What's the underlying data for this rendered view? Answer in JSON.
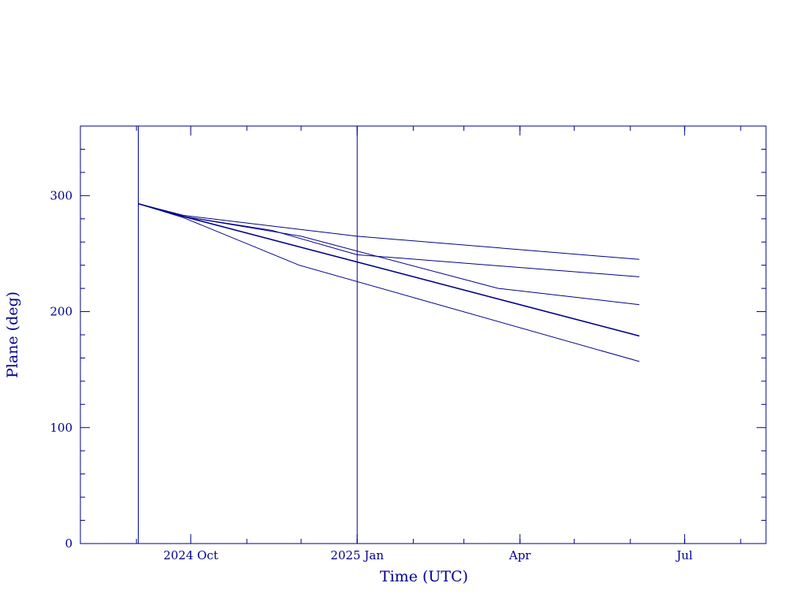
{
  "chart_data": {
    "type": "line",
    "title": "",
    "xlabel": "Time (UTC)",
    "ylabel": "Plane (deg)",
    "x_axis_type": "date",
    "xlim": [
      "2024-08-01",
      "2025-08-15"
    ],
    "ylim": [
      0,
      360
    ],
    "x_ticks": [
      {
        "date": "2024-10-01",
        "label": "2024 Oct"
      },
      {
        "date": "2025-01-01",
        "label": "2025 Jan"
      },
      {
        "date": "2025-04-01",
        "label": "Apr"
      },
      {
        "date": "2025-07-01",
        "label": "Jul"
      }
    ],
    "y_ticks": [
      {
        "value": 0,
        "label": "0"
      },
      {
        "value": 100,
        "label": "100"
      },
      {
        "value": 200,
        "label": "200"
      },
      {
        "value": 300,
        "label": "300"
      }
    ],
    "vertical_lines": [
      "2024-09-02",
      "2025-01-01"
    ],
    "grid": false,
    "color": "#00008b",
    "series": [
      {
        "x": [
          "2024-09-02",
          "2024-09-27",
          "2025-01-01",
          "2025-06-06"
        ],
        "y": [
          293,
          283,
          265,
          245
        ]
      },
      {
        "x": [
          "2024-09-02",
          "2024-09-27",
          "2024-11-15",
          "2025-01-01",
          "2025-06-06"
        ],
        "y": [
          293,
          282,
          270,
          249,
          230
        ]
      },
      {
        "x": [
          "2024-09-02",
          "2024-09-27",
          "2024-12-01",
          "2025-03-20",
          "2025-06-06"
        ],
        "y": [
          293,
          282,
          265,
          220,
          206
        ]
      },
      {
        "x": [
          "2024-09-02",
          "2024-09-27",
          "2025-06-06"
        ],
        "y": [
          293,
          282,
          179
        ]
      },
      {
        "x": [
          "2024-09-02",
          "2024-09-27",
          "2024-11-30",
          "2025-06-06"
        ],
        "y": [
          293,
          281,
          240,
          157
        ]
      }
    ]
  }
}
